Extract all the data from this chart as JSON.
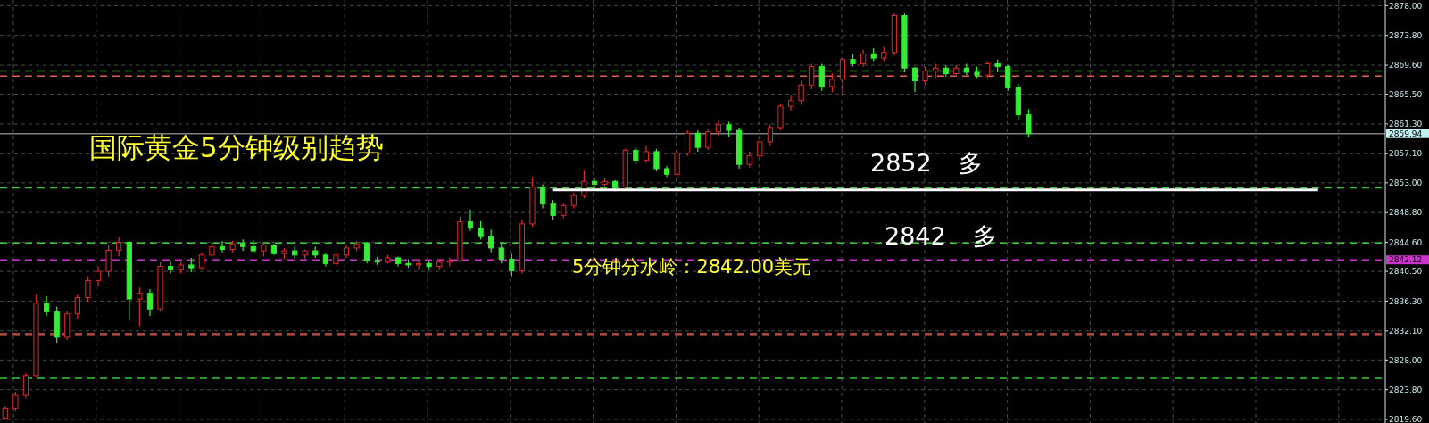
{
  "chart_data": {
    "type": "candlestick",
    "title": "国际黄金5分钟级别趋势",
    "annotations": [
      "2852 多",
      "2842 多",
      "5分钟分水岭：2842.00美元"
    ],
    "categories": [
      null,
      null,
      null,
      null,
      null,
      null,
      null,
      null,
      null,
      null,
      null,
      null,
      null,
      null,
      null,
      null,
      null,
      null,
      null,
      null,
      null,
      null,
      null,
      null,
      null,
      null,
      null,
      null,
      null,
      null,
      null,
      null,
      null,
      null,
      null,
      null,
      null,
      null,
      null,
      null,
      null,
      null,
      null,
      null,
      null,
      null,
      null,
      null,
      null,
      null,
      null,
      null,
      null,
      null,
      null,
      null,
      null,
      null,
      null,
      null,
      null,
      null,
      null,
      null,
      null,
      null,
      null,
      null,
      null,
      null,
      null,
      null,
      null,
      null,
      null,
      null,
      null,
      null,
      null,
      null,
      null,
      null,
      null,
      null,
      null,
      null,
      null,
      null,
      null,
      null,
      null,
      null,
      null,
      null,
      null,
      null,
      null,
      null,
      null,
      null,
      null,
      null,
      null,
      null,
      null,
      null,
      null,
      null,
      null,
      null,
      null,
      null,
      null,
      null,
      null,
      null,
      null,
      null,
      null,
      null,
      null,
      null,
      null,
      null,
      null,
      null,
      null,
      null,
      null,
      null,
      null,
      null,
      null,
      null
    ],
    "ohlc": [
      [
        2819.8,
        2821.5,
        2819.6,
        2821.2
      ],
      [
        2821.2,
        2823.5,
        2820.8,
        2823.0
      ],
      [
        2823.0,
        2826.2,
        2822.6,
        2825.8
      ],
      [
        2825.8,
        2837.2,
        2825.5,
        2836.0
      ],
      [
        2836.0,
        2837.0,
        2834.2,
        2834.8
      ],
      [
        2834.8,
        2835.5,
        2830.4,
        2831.2
      ],
      [
        2831.2,
        2835.0,
        2830.8,
        2834.5
      ],
      [
        2834.5,
        2837.2,
        2833.8,
        2836.8
      ],
      [
        2836.8,
        2839.8,
        2836.2,
        2839.2
      ],
      [
        2839.2,
        2841.2,
        2838.4,
        2840.5
      ],
      [
        2840.5,
        2844.2,
        2839.8,
        2843.5
      ],
      [
        2843.5,
        2845.3,
        2842.6,
        2844.6
      ],
      [
        2844.6,
        2844.8,
        2833.6,
        2836.6
      ],
      [
        2836.6,
        2838.2,
        2832.8,
        2837.4
      ],
      [
        2837.4,
        2838.0,
        2834.2,
        2835.2
      ],
      [
        2835.2,
        2841.8,
        2834.8,
        2841.2
      ],
      [
        2841.2,
        2842.0,
        2840.2,
        2840.8
      ],
      [
        2840.8,
        2841.8,
        2840.2,
        2841.4
      ],
      [
        2841.4,
        2842.4,
        2840.4,
        2841.0
      ],
      [
        2841.0,
        2843.2,
        2840.8,
        2842.8
      ],
      [
        2842.8,
        2844.6,
        2842.4,
        2844.0
      ],
      [
        2844.0,
        2844.8,
        2843.2,
        2843.6
      ],
      [
        2843.6,
        2844.8,
        2843.2,
        2844.4
      ],
      [
        2844.4,
        2845.0,
        2843.4,
        2844.0
      ],
      [
        2844.0,
        2844.9,
        2843.0,
        2843.4
      ],
      [
        2843.4,
        2844.6,
        2842.6,
        2844.2
      ],
      [
        2844.2,
        2844.4,
        2842.8,
        2843.0
      ],
      [
        2843.0,
        2843.8,
        2842.2,
        2843.4
      ],
      [
        2843.4,
        2844.0,
        2842.4,
        2842.8
      ],
      [
        2842.8,
        2843.6,
        2842.2,
        2843.4
      ],
      [
        2843.4,
        2844.0,
        2842.4,
        2842.8
      ],
      [
        2842.8,
        2843.0,
        2841.2,
        2841.6
      ],
      [
        2841.6,
        2843.2,
        2841.4,
        2842.8
      ],
      [
        2842.8,
        2844.2,
        2842.4,
        2843.8
      ],
      [
        2843.8,
        2844.8,
        2843.4,
        2844.4
      ],
      [
        2844.4,
        2844.6,
        2841.6,
        2842.0
      ],
      [
        2842.0,
        2842.6,
        2841.4,
        2841.8
      ],
      [
        2841.8,
        2842.8,
        2841.6,
        2842.4
      ],
      [
        2842.4,
        2842.6,
        2841.2,
        2841.6
      ],
      [
        2841.6,
        2842.2,
        2841.0,
        2841.4
      ],
      [
        2841.4,
        2842.0,
        2840.8,
        2841.6
      ],
      [
        2841.6,
        2842.0,
        2840.8,
        2841.2
      ],
      [
        2841.2,
        2842.2,
        2840.8,
        2841.8
      ],
      [
        2841.8,
        2842.4,
        2841.2,
        2842.0
      ],
      [
        2842.0,
        2848.2,
        2841.8,
        2847.5
      ],
      [
        2847.5,
        2849.2,
        2846.2,
        2846.6
      ],
      [
        2846.6,
        2847.6,
        2845.0,
        2845.4
      ],
      [
        2845.4,
        2846.4,
        2843.2,
        2843.8
      ],
      [
        2843.8,
        2844.6,
        2841.6,
        2842.2
      ],
      [
        2842.2,
        2843.0,
        2839.8,
        2840.6
      ],
      [
        2840.6,
        2847.8,
        2840.2,
        2847.2
      ],
      [
        2847.2,
        2853.8,
        2846.8,
        2852.4
      ],
      [
        2852.4,
        2852.8,
        2849.4,
        2850.0
      ],
      [
        2850.0,
        2850.6,
        2847.8,
        2848.4
      ],
      [
        2848.4,
        2850.2,
        2848.0,
        2849.8
      ],
      [
        2849.8,
        2851.6,
        2849.4,
        2851.2
      ],
      [
        2851.2,
        2854.7,
        2850.8,
        2853.2
      ],
      [
        2853.2,
        2853.6,
        2852.2,
        2852.8
      ],
      [
        2852.8,
        2853.6,
        2852.0,
        2853.2
      ],
      [
        2853.2,
        2853.4,
        2851.8,
        2852.4
      ],
      [
        2852.4,
        2857.8,
        2852.2,
        2857.6
      ],
      [
        2857.6,
        2858.0,
        2855.6,
        2856.2
      ],
      [
        2856.2,
        2858.2,
        2855.8,
        2857.4
      ],
      [
        2857.4,
        2857.8,
        2854.6,
        2855.0
      ],
      [
        2855.0,
        2855.4,
        2853.8,
        2854.2
      ],
      [
        2854.2,
        2857.6,
        2853.8,
        2857.2
      ],
      [
        2857.2,
        2860.4,
        2856.8,
        2860.0
      ],
      [
        2860.0,
        2860.4,
        2857.4,
        2858.0
      ],
      [
        2858.0,
        2860.6,
        2857.6,
        2860.2
      ],
      [
        2860.2,
        2861.8,
        2859.6,
        2861.2
      ],
      [
        2861.2,
        2861.6,
        2859.4,
        2860.4
      ],
      [
        2860.4,
        2860.8,
        2855.0,
        2855.6
      ],
      [
        2855.6,
        2857.4,
        2855.2,
        2856.8
      ],
      [
        2856.8,
        2859.2,
        2856.4,
        2858.8
      ],
      [
        2858.8,
        2861.2,
        2858.2,
        2860.8
      ],
      [
        2860.8,
        2864.2,
        2860.4,
        2863.8
      ],
      [
        2863.8,
        2865.4,
        2863.2,
        2864.6
      ],
      [
        2864.6,
        2867.4,
        2864.0,
        2866.8
      ],
      [
        2866.8,
        2869.8,
        2866.2,
        2869.4
      ],
      [
        2869.4,
        2869.8,
        2866.0,
        2866.6
      ],
      [
        2866.6,
        2868.4,
        2865.8,
        2867.6
      ],
      [
        2867.6,
        2870.6,
        2865.6,
        2870.4
      ],
      [
        2870.4,
        2871.2,
        2869.4,
        2869.8
      ],
      [
        2869.8,
        2871.8,
        2869.4,
        2871.2
      ],
      [
        2871.2,
        2872.0,
        2870.2,
        2870.6
      ],
      [
        2870.6,
        2872.2,
        2870.2,
        2871.4
      ],
      [
        2871.4,
        2876.9,
        2871.0,
        2876.6
      ],
      [
        2876.6,
        2876.9,
        2868.6,
        2869.2
      ],
      [
        2869.2,
        2869.4,
        2865.8,
        2867.4
      ],
      [
        2867.4,
        2869.4,
        2866.8,
        2868.8
      ],
      [
        2868.8,
        2869.8,
        2867.8,
        2869.2
      ],
      [
        2869.2,
        2869.6,
        2868.0,
        2868.4
      ],
      [
        2868.4,
        2869.6,
        2868.0,
        2869.2
      ],
      [
        2869.2,
        2869.8,
        2868.2,
        2868.6
      ],
      [
        2868.6,
        2869.4,
        2867.8,
        2868.2
      ],
      [
        2868.2,
        2870.2,
        2867.8,
        2869.8
      ],
      [
        2869.8,
        2870.4,
        2868.6,
        2869.4
      ],
      [
        2869.4,
        2869.6,
        2866.0,
        2866.4
      ],
      [
        2866.4,
        2867.0,
        2861.8,
        2862.6
      ],
      [
        2862.6,
        2863.4,
        2859.4,
        2859.94
      ],
      null,
      null,
      null,
      null,
      null,
      null,
      null,
      null,
      null,
      null,
      null,
      null,
      null,
      null,
      null,
      null,
      null,
      null,
      null,
      null,
      null,
      null,
      null,
      null,
      null,
      null,
      null,
      null,
      null,
      null,
      null,
      null,
      null,
      null
    ],
    "series": [
      {
        "type": "line",
        "color": "#ffffff",
        "values": [
          null,
          null,
          null,
          null,
          null,
          null,
          null,
          null,
          null,
          null,
          null,
          null,
          null,
          null,
          null,
          null,
          null,
          null,
          null,
          null,
          null,
          null,
          null,
          null,
          null,
          null,
          null,
          null,
          null,
          null,
          null,
          null,
          null,
          null,
          null,
          null,
          null,
          null,
          null,
          null,
          null,
          null,
          null,
          null,
          null,
          null,
          null,
          null,
          null,
          null,
          null,
          null,
          null,
          2852,
          2852,
          2852,
          2852,
          2852,
          2852,
          2852,
          2852,
          2852,
          2852,
          2852,
          2852,
          2852,
          2852,
          2852,
          2852,
          2852,
          2852,
          2852,
          2852,
          2852,
          2852,
          2852,
          2852,
          2852,
          2852,
          2852,
          2852,
          2852,
          2852,
          2852,
          2852,
          2852,
          2852,
          2852,
          2852,
          2852,
          2852,
          2852,
          2852,
          2852,
          2852,
          2852,
          2852,
          2852,
          2852,
          2852,
          2852,
          2852,
          2852,
          2852,
          2852,
          2852,
          2852,
          2852,
          2852,
          2852,
          2852,
          2852,
          2852,
          2852,
          2852,
          2852,
          2852,
          2852,
          2852,
          2852,
          2852,
          2852,
          2852,
          2852,
          2852,
          2852,
          2852,
          2852,
          null,
          null,
          null,
          null,
          null,
          null
        ]
      }
    ],
    "ylim": [
      2819.1,
      2878.8
    ],
    "yticks": [
      {
        "value": 2878.0,
        "label": "2878.00"
      },
      {
        "value": 2873.8,
        "label": "2873.80"
      },
      {
        "value": 2869.6,
        "label": "2869.60"
      },
      {
        "value": 2865.5,
        "label": "2865.50"
      },
      {
        "value": 2861.3,
        "label": "2861.30"
      },
      {
        "value": 2857.1,
        "label": "2857.10"
      },
      {
        "value": 2853.0,
        "label": "2853.00"
      },
      {
        "value": 2848.8,
        "label": "2848.80"
      },
      {
        "value": 2844.6,
        "label": "2844.60"
      },
      {
        "value": 2840.5,
        "label": "2840.50"
      },
      {
        "value": 2836.3,
        "label": "2836.30"
      },
      {
        "value": 2832.1,
        "label": "2832.10"
      },
      {
        "value": 2828.0,
        "label": "2828.00"
      },
      {
        "value": 2823.8,
        "label": "2823.80"
      },
      {
        "value": 2819.6,
        "label": "2819.60"
      }
    ],
    "ref_lines": [
      {
        "axis": "y",
        "value": 2868.8,
        "color": "#33cc33",
        "line_style": "dashed"
      },
      {
        "axis": "y",
        "value": 2868.05,
        "color": "#e06050",
        "line_style": "dashed"
      },
      {
        "axis": "y",
        "value": 2859.94,
        "label": "2859.94",
        "color": "#808080",
        "line_style": "solid"
      },
      {
        "axis": "y",
        "value": 2852.3,
        "color": "#33cc33",
        "line_style": "dashed"
      },
      {
        "axis": "y",
        "value": 2844.5,
        "color": "#33cc33",
        "line_style": "dashed"
      },
      {
        "axis": "y",
        "value": 2842.12,
        "label": "2842.12",
        "color": "#cc33cc",
        "line_style": "dashed"
      },
      {
        "axis": "y",
        "value": 2831.7,
        "color": "#e06050",
        "line_style": "dashed"
      },
      {
        "axis": "y",
        "value": 2831.4,
        "color": "#e06050",
        "line_style": "dashed"
      },
      {
        "axis": "y",
        "value": 2825.4,
        "color": "#33cc33",
        "line_style": "dashed"
      }
    ],
    "grid": true,
    "tick_labels": "y"
  }
}
